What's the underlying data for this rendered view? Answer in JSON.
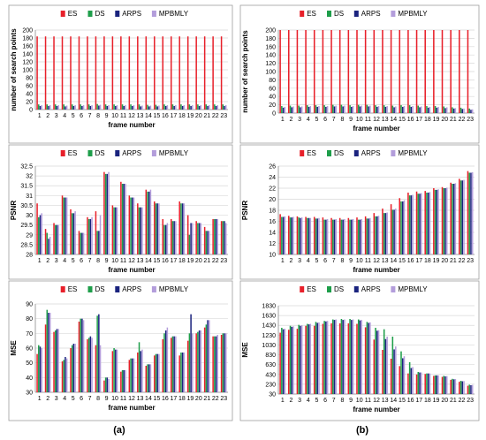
{
  "figure": {
    "panel_labels": [
      "(a)",
      "(b)"
    ]
  },
  "colors": {
    "ES": "#e8202a",
    "DS": "#1e9e4a",
    "ARPS": "#1a237e",
    "MPBMLY": "#b39ddb"
  },
  "chart_data": [
    {
      "panel": "(a)",
      "type": "bar",
      "ylabel": "number of search points",
      "xlabel": "frame number",
      "ylim": [
        0,
        200
      ],
      "yticks": [
        0,
        20,
        40,
        60,
        80,
        100,
        120,
        140,
        160,
        180,
        200
      ],
      "legend": "top-center",
      "categories": [
        "1",
        "2",
        "3",
        "4",
        "5",
        "6",
        "7",
        "8",
        "9",
        "10",
        "11",
        "12",
        "13",
        "14",
        "15",
        "16",
        "17",
        "18",
        "19",
        "20",
        "21",
        "22",
        "23"
      ],
      "series": [
        {
          "name": "ES",
          "values": [
            184,
            184,
            184,
            184,
            184,
            184,
            184,
            184,
            184,
            184,
            184,
            184,
            184,
            184,
            184,
            184,
            184,
            184,
            184,
            184,
            184,
            184,
            184
          ]
        },
        {
          "name": "DS",
          "values": [
            13,
            13,
            13,
            13,
            13,
            13,
            13,
            14,
            13,
            13,
            13,
            13,
            13,
            12,
            12,
            13,
            13,
            13,
            13,
            13,
            13,
            13,
            13
          ]
        },
        {
          "name": "ARPS",
          "values": [
            9,
            9,
            9,
            8,
            9,
            9,
            9,
            10,
            9,
            9,
            9,
            9,
            8,
            8,
            8,
            9,
            9,
            9,
            9,
            9,
            9,
            9,
            9
          ]
        },
        {
          "name": "MPBMLY",
          "values": [
            11,
            11,
            11,
            10,
            11,
            11,
            11,
            12,
            11,
            11,
            11,
            11,
            10,
            10,
            10,
            11,
            11,
            11,
            11,
            11,
            11,
            11,
            11
          ]
        }
      ]
    },
    {
      "panel": "(b)",
      "type": "bar",
      "ylabel": "number of search points",
      "xlabel": "frame number",
      "ylim": [
        0,
        200
      ],
      "yticks": [
        0,
        20,
        40,
        60,
        80,
        100,
        120,
        140,
        160,
        180,
        200
      ],
      "legend": "top-center",
      "categories": [
        "1",
        "2",
        "3",
        "4",
        "5",
        "6",
        "7",
        "8",
        "9",
        "10",
        "11",
        "12",
        "13",
        "14",
        "15",
        "16",
        "17",
        "18",
        "19",
        "20",
        "21",
        "22",
        "23"
      ],
      "series": [
        {
          "name": "ES",
          "values": [
            200,
            200,
            200,
            200,
            200,
            200,
            200,
            200,
            200,
            200,
            200,
            200,
            200,
            200,
            200,
            200,
            200,
            200,
            200,
            200,
            200,
            200,
            200
          ]
        },
        {
          "name": "DS",
          "values": [
            17,
            18,
            18,
            19,
            19,
            19,
            20,
            20,
            19,
            20,
            20,
            19,
            19,
            18,
            19,
            19,
            18,
            17,
            17,
            16,
            14,
            13,
            11
          ]
        },
        {
          "name": "ARPS",
          "values": [
            13,
            14,
            14,
            15,
            15,
            15,
            16,
            16,
            15,
            16,
            16,
            15,
            15,
            14,
            15,
            15,
            14,
            13,
            13,
            12,
            11,
            10,
            8
          ]
        },
        {
          "name": "MPBMLY",
          "values": [
            15,
            16,
            16,
            17,
            17,
            17,
            18,
            18,
            17,
            18,
            18,
            17,
            17,
            16,
            17,
            17,
            16,
            15,
            15,
            14,
            12,
            11,
            9
          ]
        }
      ]
    },
    {
      "panel": "(a)",
      "type": "bar",
      "ylabel": "PSNR",
      "xlabel": "frame number",
      "ylim": [
        28,
        32.5
      ],
      "yticks": [
        28,
        28.5,
        29,
        29.5,
        30,
        30.5,
        31,
        31.5,
        32,
        32.5
      ],
      "legend": "top-center",
      "categories": [
        "1",
        "2",
        "3",
        "4",
        "5",
        "6",
        "7",
        "8",
        "9",
        "10",
        "11",
        "12",
        "13",
        "14",
        "15",
        "16",
        "17",
        "18",
        "19",
        "20",
        "21",
        "22",
        "23"
      ],
      "series": [
        {
          "name": "ES",
          "values": [
            30.6,
            29.3,
            29.6,
            31.0,
            30.3,
            29.2,
            29.9,
            30.2,
            32.2,
            30.5,
            31.7,
            31.0,
            30.6,
            31.3,
            30.7,
            29.8,
            29.8,
            30.7,
            30.0,
            29.7,
            29.4,
            29.8,
            29.7
          ]
        },
        {
          "name": "DS",
          "values": [
            29.9,
            29.1,
            29.5,
            30.9,
            30.1,
            29.1,
            29.8,
            29.2,
            32.1,
            30.4,
            31.6,
            30.9,
            30.4,
            31.2,
            30.6,
            29.5,
            29.7,
            30.6,
            29.0,
            29.6,
            29.2,
            29.8,
            29.7
          ]
        },
        {
          "name": "ARPS",
          "values": [
            30.0,
            28.8,
            29.5,
            30.9,
            30.1,
            29.1,
            29.8,
            29.2,
            32.1,
            30.4,
            31.6,
            30.9,
            30.4,
            31.2,
            30.6,
            29.5,
            29.7,
            30.6,
            29.6,
            29.6,
            29.2,
            29.8,
            29.7
          ]
        },
        {
          "name": "MPBMLY",
          "values": [
            30.1,
            28.9,
            29.5,
            30.9,
            30.2,
            29.1,
            29.9,
            30.0,
            32.2,
            30.4,
            31.6,
            30.9,
            30.4,
            31.3,
            30.6,
            29.6,
            29.7,
            30.6,
            29.6,
            29.6,
            29.2,
            29.8,
            29.6
          ]
        }
      ]
    },
    {
      "panel": "(b)",
      "type": "bar",
      "ylabel": "PSNR",
      "xlabel": "frame number",
      "ylim": [
        10,
        26
      ],
      "yticks": [
        10,
        12,
        14,
        16,
        18,
        20,
        22,
        24,
        26
      ],
      "legend": "top-center",
      "categories": [
        "1",
        "2",
        "3",
        "4",
        "5",
        "6",
        "7",
        "8",
        "9",
        "10",
        "11",
        "12",
        "13",
        "14",
        "15",
        "16",
        "17",
        "18",
        "19",
        "20",
        "21",
        "22",
        "23"
      ],
      "series": [
        {
          "name": "ES",
          "values": [
            17.3,
            17.0,
            16.9,
            16.8,
            16.8,
            16.7,
            16.6,
            16.6,
            16.6,
            16.7,
            16.9,
            17.5,
            18.3,
            19.1,
            20.2,
            21.2,
            21.4,
            21.5,
            22.0,
            22.2,
            23.0,
            23.7,
            25.1
          ]
        },
        {
          "name": "DS",
          "values": [
            16.8,
            16.7,
            16.7,
            16.6,
            16.5,
            16.3,
            16.3,
            16.3,
            16.3,
            16.3,
            16.5,
            16.9,
            17.5,
            18.1,
            19.6,
            20.7,
            21.0,
            21.2,
            21.7,
            22.0,
            22.8,
            23.4,
            24.8
          ]
        },
        {
          "name": "ARPS",
          "values": [
            16.8,
            16.7,
            16.6,
            16.6,
            16.5,
            16.3,
            16.3,
            16.3,
            16.3,
            16.3,
            16.5,
            16.9,
            17.5,
            18.1,
            19.6,
            20.7,
            21.0,
            21.2,
            21.7,
            22.0,
            22.8,
            23.4,
            24.8
          ]
        },
        {
          "name": "MPBMLY",
          "values": [
            16.9,
            16.8,
            16.7,
            16.6,
            16.6,
            16.4,
            16.4,
            16.4,
            16.4,
            16.4,
            16.6,
            17.0,
            17.6,
            18.3,
            19.8,
            20.8,
            21.1,
            21.3,
            21.8,
            22.1,
            22.9,
            23.5,
            24.9
          ]
        }
      ]
    },
    {
      "panel": "(a)",
      "type": "bar",
      "ylabel": "MSE",
      "xlabel": "frame number",
      "ylim": [
        30,
        90
      ],
      "yticks": [
        30,
        40,
        50,
        60,
        70,
        80,
        90
      ],
      "legend": "top-center",
      "categories": [
        "1",
        "2",
        "3",
        "4",
        "5",
        "6",
        "7",
        "8",
        "9",
        "10",
        "11",
        "12",
        "13",
        "14",
        "15",
        "16",
        "17",
        "18",
        "19",
        "20",
        "21",
        "22",
        "23"
      ],
      "series": [
        {
          "name": "ES",
          "values": [
            56,
            76,
            71,
            51,
            60,
            78,
            66,
            62,
            38,
            58,
            44,
            52,
            57,
            48,
            55,
            66,
            67,
            55,
            65,
            70,
            74,
            68,
            69
          ]
        },
        {
          "name": "DS",
          "values": [
            62,
            86,
            72,
            52,
            62,
            80,
            67,
            82,
            40,
            60,
            45,
            53,
            64,
            49,
            56,
            70,
            68,
            57,
            70,
            71,
            76,
            68,
            70
          ]
        },
        {
          "name": "ARPS",
          "values": [
            61,
            84,
            73,
            54,
            63,
            80,
            68,
            83,
            40,
            59,
            45,
            53,
            58,
            49,
            56,
            72,
            68,
            57,
            83,
            72,
            79,
            68,
            70
          ]
        },
        {
          "name": "MPBMLY",
          "values": [
            60,
            84,
            73,
            53,
            63,
            79,
            67,
            62,
            39,
            59,
            45,
            53,
            59,
            49,
            56,
            74,
            68,
            57,
            70,
            72,
            79,
            69,
            70
          ]
        }
      ]
    },
    {
      "panel": "(b)",
      "type": "bar",
      "ylabel": "MSE",
      "xlabel": "frame number",
      "ylim": [
        30,
        1830
      ],
      "yticks": [
        30,
        230,
        430,
        630,
        830,
        1030,
        1230,
        1430,
        1630,
        1830
      ],
      "legend": "top-center",
      "categories": [
        "1",
        "2",
        "3",
        "4",
        "5",
        "6",
        "7",
        "8",
        "9",
        "10",
        "11",
        "12",
        "13",
        "14",
        "15",
        "16",
        "17",
        "18",
        "19",
        "20",
        "21",
        "22",
        "23"
      ],
      "series": [
        {
          "name": "ES",
          "values": [
            1280,
            1340,
            1360,
            1420,
            1420,
            1460,
            1470,
            1470,
            1470,
            1460,
            1390,
            1140,
            930,
            750,
            600,
            450,
            430,
            440,
            400,
            380,
            320,
            280,
            200
          ]
        },
        {
          "name": "DS",
          "values": [
            1380,
            1420,
            1440,
            1460,
            1500,
            1520,
            1550,
            1560,
            1560,
            1550,
            1500,
            1380,
            1350,
            1200,
            900,
            680,
            480,
            450,
            410,
            400,
            340,
            300,
            220
          ]
        },
        {
          "name": "ARPS",
          "values": [
            1350,
            1400,
            1420,
            1450,
            1480,
            1510,
            1540,
            1540,
            1540,
            1530,
            1480,
            1320,
            1150,
            940,
            760,
            560,
            470,
            450,
            410,
            390,
            330,
            290,
            210
          ]
        },
        {
          "name": "MPBMLY",
          "values": [
            1360,
            1410,
            1430,
            1460,
            1490,
            1520,
            1550,
            1550,
            1550,
            1540,
            1490,
            1330,
            1200,
            1000,
            800,
            580,
            470,
            450,
            410,
            395,
            335,
            295,
            215
          ]
        }
      ]
    }
  ]
}
